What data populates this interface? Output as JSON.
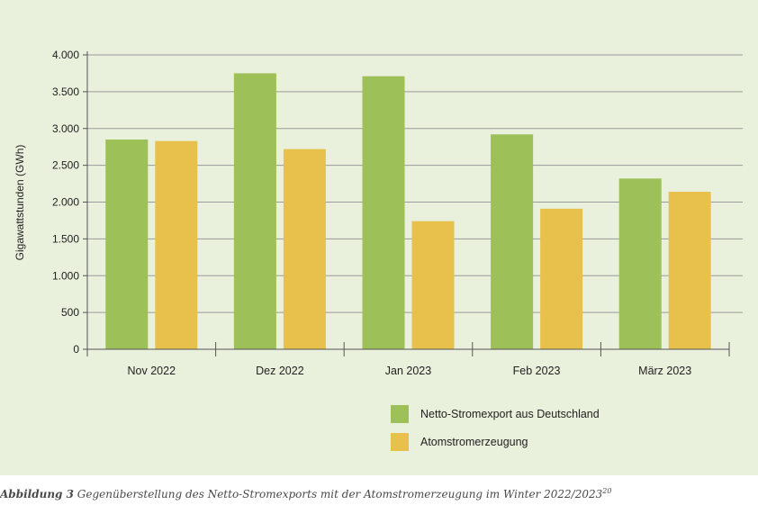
{
  "chart_data": {
    "type": "bar",
    "categories": [
      "Nov 2022",
      "Dez 2022",
      "Jan 2023",
      "Feb 2023",
      "März 2023"
    ],
    "series": [
      {
        "name": "Netto-Stromexport aus Deutschland",
        "values": [
          2850,
          3750,
          3710,
          2920,
          2320
        ],
        "color": "#9dc058"
      },
      {
        "name": "Atomstromerzeugung",
        "values": [
          2830,
          2720,
          1740,
          1910,
          2140
        ],
        "color": "#e8c14d"
      }
    ],
    "ylabel": "Gigawattstunden (GWh)",
    "xlabel": "",
    "ylim": [
      0,
      4000
    ],
    "yticks": [
      0,
      500,
      1000,
      1500,
      2000,
      2500,
      3000,
      3500,
      4000
    ],
    "ytick_labels": [
      "0",
      "500",
      "1.000",
      "1.500",
      "2.000",
      "2.500",
      "3.000",
      "3.500",
      "4.000"
    ],
    "grid": true,
    "legend_position": "bottom-right"
  },
  "caption": {
    "label": "Abbildung 3",
    "text": " Gegenüberstellung des Netto-Stromexports mit der Atomstromerzeugung im Winter 2022/2023",
    "footnote": "20"
  }
}
